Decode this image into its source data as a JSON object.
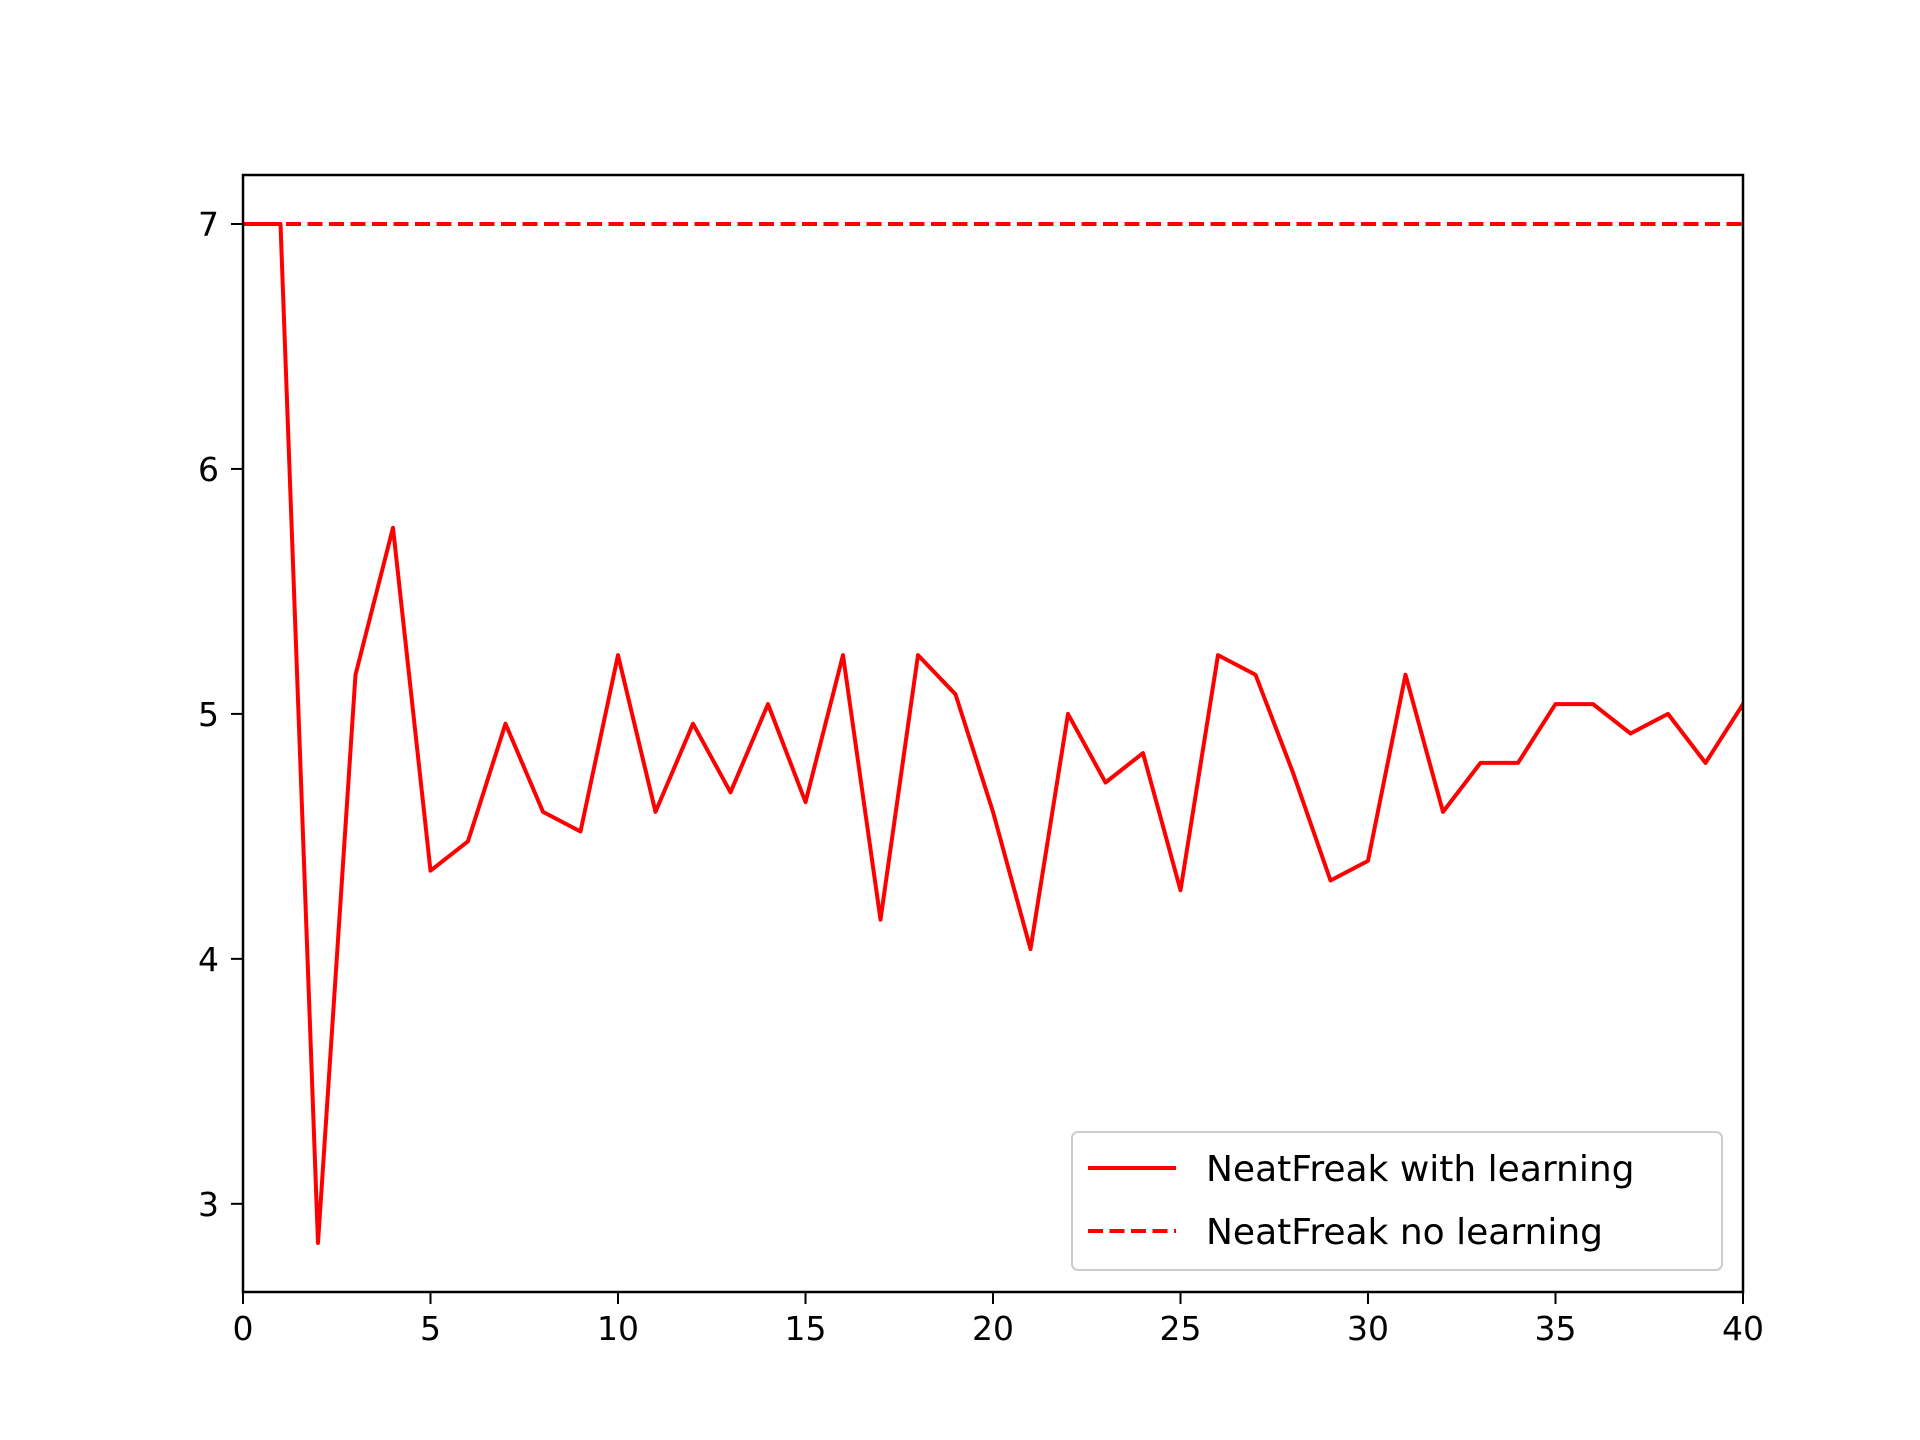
{
  "chart_data": {
    "type": "line",
    "title": "",
    "xlabel": "",
    "ylabel": "",
    "xlim": [
      0,
      40
    ],
    "ylim": [
      2.64,
      7.2
    ],
    "xticks": [
      0,
      5,
      10,
      15,
      20,
      25,
      30,
      35,
      40
    ],
    "yticks": [
      3,
      4,
      5,
      6,
      7
    ],
    "grid": false,
    "legend_position": "bottom-right",
    "series": [
      {
        "name": "NeatFreak with learning",
        "color": "#ff0000",
        "linestyle": "solid",
        "x": [
          0,
          1,
          2,
          3,
          4,
          5,
          6,
          7,
          8,
          9,
          10,
          11,
          12,
          13,
          14,
          15,
          16,
          17,
          18,
          19,
          20,
          21,
          22,
          23,
          24,
          25,
          26,
          27,
          28,
          29,
          30,
          31,
          32,
          33,
          34,
          35,
          36,
          37,
          38,
          39,
          40
        ],
        "y": [
          7.0,
          7.0,
          2.84,
          5.16,
          5.76,
          4.36,
          4.48,
          4.96,
          4.6,
          4.52,
          5.24,
          4.6,
          4.96,
          4.68,
          5.04,
          4.64,
          5.24,
          4.16,
          5.24,
          5.08,
          4.6,
          4.04,
          5.0,
          4.72,
          4.84,
          4.28,
          5.24,
          5.16,
          4.76,
          4.32,
          4.4,
          5.16,
          4.6,
          4.8,
          4.8,
          5.04,
          5.04,
          4.92,
          5.0,
          4.8,
          5.04
        ]
      },
      {
        "name": "NeatFreak no learning",
        "color": "#ff0000",
        "linestyle": "dashed",
        "x": [
          0,
          40
        ],
        "y": [
          7.0,
          7.0
        ]
      }
    ]
  }
}
